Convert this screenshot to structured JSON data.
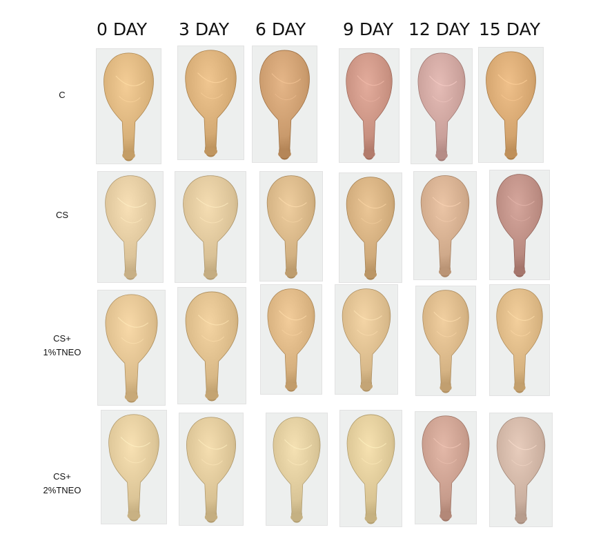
{
  "columns": [
    "0 DAY",
    "3 DAY",
    "6 DAY",
    "9 DAY",
    "12 DAY",
    "15 DAY"
  ],
  "rows": [
    {
      "label_lines": [
        "C"
      ],
      "cells": [
        {
          "tone": "#d8b17a"
        },
        {
          "tone": "#d4aa74"
        },
        {
          "tone": "#c99a6c"
        },
        {
          "tone": "#c79080"
        },
        {
          "tone": "#c9a09a"
        },
        {
          "tone": "#d3a46e"
        }
      ]
    },
    {
      "label_lines": [
        "CS"
      ],
      "cells": [
        {
          "tone": "#dcc49a"
        },
        {
          "tone": "#d9c196"
        },
        {
          "tone": "#d2b182"
        },
        {
          "tone": "#cfaa7a"
        },
        {
          "tone": "#cfa98a"
        },
        {
          "tone": "#b98a80"
        }
      ]
    },
    {
      "label_lines": [
        "CS+",
        "1%TNEO"
      ],
      "cells": [
        {
          "tone": "#dcbd8c"
        },
        {
          "tone": "#d8b886"
        },
        {
          "tone": "#d6b07e"
        },
        {
          "tone": "#d8b98a"
        },
        {
          "tone": "#d5b384"
        },
        {
          "tone": "#d7b380"
        }
      ]
    },
    {
      "label_lines": [
        "CS+",
        "2%TNEO"
      ],
      "cells": [
        {
          "tone": "#dcc597"
        },
        {
          "tone": "#d9c294"
        },
        {
          "tone": "#d9c597"
        },
        {
          "tone": "#dac594"
        },
        {
          "tone": "#c79c8c"
        },
        {
          "tone": "#cbb0a0"
        }
      ]
    }
  ]
}
